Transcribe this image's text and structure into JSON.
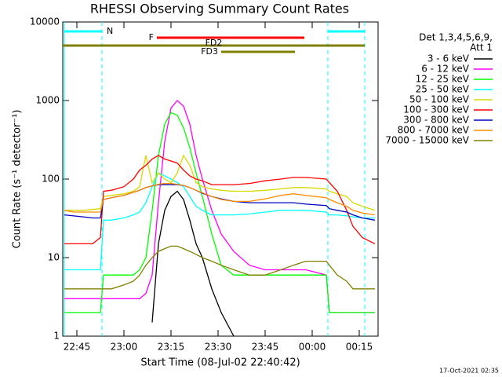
{
  "chart_data": {
    "type": "line",
    "title": "RHESSI Observing Summary Count Rates",
    "xlabel": "Start Time (08-Jul-02 22:40:42)",
    "ylabel": "Count Rate (s⁻¹ detector⁻¹)",
    "footer": "17-Oct-2021 02:35",
    "legend_title": [
      "Det 1,3,4,5,6,9,",
      "Att 1"
    ],
    "log_y": true,
    "xlim": [
      40.5,
      141
    ],
    "ylim": [
      1,
      10000
    ],
    "xticks": [
      {
        "value": 45,
        "label": "22:45"
      },
      {
        "value": 60,
        "label": "23:00"
      },
      {
        "value": 75,
        "label": "23:15"
      },
      {
        "value": 90,
        "label": "23:30"
      },
      {
        "value": 105,
        "label": "23:45"
      },
      {
        "value": 120,
        "label": "00:00"
      },
      {
        "value": 135,
        "label": "00:15"
      }
    ],
    "yticks": [
      1,
      10,
      100,
      1000,
      10000
    ],
    "flags": [
      {
        "name": "N",
        "color": "#00ffff",
        "segments": [
          [
            41,
            53
          ],
          [
            125,
            136.75
          ]
        ]
      },
      {
        "name": "F",
        "color": "#ff0000",
        "segments": [
          [
            70.5,
            117.5
          ]
        ]
      },
      {
        "name": "FD2",
        "color": "#808000",
        "segments": [
          [
            40.5,
            136.75
          ]
        ]
      },
      {
        "name": "FD3",
        "color": "#808000",
        "segments": [
          [
            91,
            114.5
          ]
        ]
      }
    ],
    "x": [
      41,
      44,
      47,
      50,
      52.5,
      53.5,
      56,
      60,
      63,
      65,
      67,
      69,
      71,
      73,
      75,
      77,
      79,
      81,
      83,
      85,
      88,
      91,
      95,
      100,
      105,
      110,
      114,
      118,
      124.5,
      125.5,
      128,
      131,
      133,
      136,
      140
    ],
    "series": [
      {
        "name": "3 - 6 keV",
        "color": "#000000",
        "values": [
          null,
          null,
          null,
          null,
          null,
          null,
          null,
          null,
          null,
          null,
          null,
          1.5,
          15,
          40,
          60,
          70,
          55,
          30,
          15,
          10,
          4,
          2,
          1,
          null,
          null,
          null,
          null,
          null,
          null,
          null,
          null,
          null,
          null,
          null,
          null
        ]
      },
      {
        "name": "6 - 12 keV",
        "color": "#ff00ff",
        "values": [
          3,
          3,
          3,
          3,
          3,
          3,
          3,
          3,
          3,
          3,
          3.5,
          6,
          50,
          300,
          800,
          1000,
          850,
          500,
          200,
          100,
          40,
          20,
          12,
          8,
          7,
          7,
          7,
          7,
          6,
          2,
          2,
          2,
          2,
          2,
          2
        ]
      },
      {
        "name": "12 - 25 keV",
        "color": "#00ff00",
        "values": [
          2,
          2,
          2,
          2,
          2,
          6,
          6,
          6,
          6,
          7,
          10,
          40,
          200,
          500,
          700,
          650,
          450,
          250,
          120,
          60,
          20,
          8,
          6,
          6,
          6,
          6,
          6,
          6,
          6,
          2,
          2,
          2,
          2,
          2,
          2
        ]
      },
      {
        "name": "25 - 50 keV",
        "color": "#00ffff",
        "values": [
          7,
          7,
          7,
          7,
          7,
          30,
          30,
          32,
          35,
          38,
          50,
          80,
          120,
          110,
          100,
          90,
          80,
          60,
          45,
          40,
          35,
          35,
          35,
          36,
          38,
          40,
          40,
          40,
          38,
          35,
          35,
          34,
          33,
          32,
          32
        ]
      },
      {
        "name": "50 - 100 keV",
        "color": "#d8d800",
        "values": [
          40,
          40,
          40,
          41,
          42,
          60,
          62,
          65,
          70,
          80,
          200,
          90,
          120,
          100,
          90,
          120,
          200,
          150,
          90,
          80,
          75,
          72,
          70,
          70,
          72,
          75,
          78,
          78,
          75,
          70,
          65,
          60,
          50,
          45,
          40
        ]
      },
      {
        "name": "100 - 300 keV",
        "color": "#ff0000",
        "values": [
          15,
          15,
          15,
          15,
          18,
          70,
          72,
          80,
          100,
          130,
          150,
          180,
          200,
          180,
          170,
          160,
          130,
          110,
          100,
          95,
          85,
          85,
          85,
          88,
          95,
          100,
          105,
          105,
          100,
          90,
          70,
          40,
          25,
          18,
          15
        ]
      },
      {
        "name": "300 - 800 keV",
        "color": "#0000c0",
        "values": [
          35,
          34,
          33,
          32,
          32,
          55,
          58,
          62,
          68,
          72,
          78,
          82,
          85,
          85,
          85,
          85,
          83,
          78,
          72,
          66,
          60,
          56,
          52,
          50,
          50,
          50,
          50,
          48,
          46,
          42,
          40,
          38,
          35,
          32,
          30
        ]
      },
      {
        "name": "800 - 7000 keV",
        "color": "#ff8c00",
        "values": [
          40,
          38,
          38,
          38,
          38,
          55,
          58,
          62,
          68,
          72,
          78,
          82,
          86,
          88,
          88,
          86,
          83,
          78,
          72,
          67,
          60,
          55,
          52,
          52,
          56,
          62,
          65,
          62,
          58,
          55,
          50,
          45,
          40,
          37,
          35
        ]
      },
      {
        "name": "7000 - 15000 keV",
        "color": "#808000",
        "values": [
          4,
          4,
          4,
          4,
          4,
          4,
          4,
          4.5,
          5,
          6,
          8,
          10,
          12,
          13,
          14,
          14,
          13,
          12,
          11,
          10,
          9,
          8,
          7,
          6,
          6,
          7,
          8,
          9,
          9,
          8,
          6,
          5,
          4,
          4,
          4
        ]
      }
    ]
  }
}
